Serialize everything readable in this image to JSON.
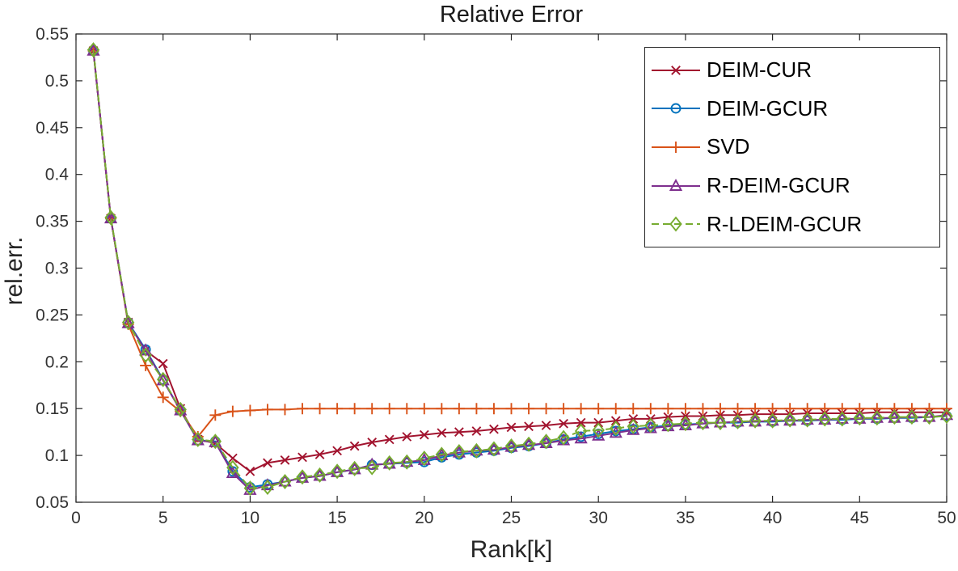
{
  "chart_data": {
    "type": "line",
    "title": "Relative Error",
    "xlabel": "Rank[k]",
    "ylabel": "rel.err.",
    "xlim": [
      0,
      50
    ],
    "ylim": [
      0.05,
      0.55
    ],
    "grid": false,
    "legend_position": "top-right",
    "axis_color": "#262626",
    "xticks": {
      "values": [
        0,
        5,
        10,
        15,
        20,
        25,
        30,
        35,
        40,
        45,
        50
      ],
      "labels": [
        "0",
        "5",
        "10",
        "15",
        "20",
        "25",
        "30",
        "35",
        "40",
        "45",
        "50"
      ]
    },
    "yticks": {
      "values": [
        0.05,
        0.1,
        0.15,
        0.2,
        0.25,
        0.3,
        0.35,
        0.4,
        0.45,
        0.5,
        0.55
      ],
      "labels": [
        "0.05",
        "0.1",
        "0.15",
        "0.2",
        "0.25",
        "0.3",
        "0.35",
        "0.4",
        "0.45",
        "0.5",
        "0.55"
      ]
    },
    "x": [
      1,
      2,
      3,
      4,
      5,
      6,
      7,
      8,
      9,
      10,
      11,
      12,
      13,
      14,
      15,
      16,
      17,
      18,
      19,
      20,
      21,
      22,
      23,
      24,
      25,
      26,
      27,
      28,
      29,
      30,
      31,
      32,
      33,
      34,
      35,
      36,
      37,
      38,
      39,
      40,
      41,
      42,
      43,
      44,
      45,
      46,
      47,
      48,
      49,
      50
    ],
    "series": [
      {
        "name": "DEIM-CUR",
        "color": "#A2142F",
        "marker": "x",
        "dash": null,
        "values": [
          0.532,
          0.353,
          0.242,
          0.212,
          0.198,
          0.15,
          0.117,
          0.113,
          0.097,
          0.083,
          0.092,
          0.095,
          0.098,
          0.101,
          0.105,
          0.11,
          0.114,
          0.117,
          0.12,
          0.122,
          0.124,
          0.125,
          0.126,
          0.128,
          0.13,
          0.131,
          0.132,
          0.134,
          0.135,
          0.135,
          0.137,
          0.139,
          0.139,
          0.141,
          0.142,
          0.142,
          0.143,
          0.143,
          0.144,
          0.144,
          0.144,
          0.145,
          0.145,
          0.145,
          0.145,
          0.146,
          0.146,
          0.146,
          0.146,
          0.146
        ]
      },
      {
        "name": "DEIM-GCUR",
        "color": "#0072BD",
        "marker": "circle",
        "dash": null,
        "values": [
          0.532,
          0.353,
          0.242,
          0.213,
          0.181,
          0.148,
          0.116,
          0.115,
          0.083,
          0.066,
          0.069,
          0.072,
          0.076,
          0.078,
          0.082,
          0.085,
          0.09,
          0.091,
          0.092,
          0.093,
          0.098,
          0.101,
          0.103,
          0.105,
          0.108,
          0.11,
          0.113,
          0.117,
          0.12,
          0.123,
          0.126,
          0.128,
          0.13,
          0.132,
          0.133,
          0.134,
          0.135,
          0.135,
          0.136,
          0.136,
          0.137,
          0.137,
          0.138,
          0.138,
          0.139,
          0.139,
          0.14,
          0.14,
          0.141,
          0.142
        ]
      },
      {
        "name": "SVD",
        "color": "#D95319",
        "marker": "plus",
        "dash": null,
        "values": [
          0.532,
          0.353,
          0.24,
          0.196,
          0.162,
          0.147,
          0.12,
          0.143,
          0.147,
          0.148,
          0.149,
          0.149,
          0.15,
          0.15,
          0.15,
          0.15,
          0.15,
          0.15,
          0.15,
          0.15,
          0.15,
          0.15,
          0.15,
          0.15,
          0.15,
          0.15,
          0.15,
          0.15,
          0.15,
          0.15,
          0.15,
          0.15,
          0.15,
          0.15,
          0.15,
          0.15,
          0.15,
          0.15,
          0.15,
          0.15,
          0.15,
          0.15,
          0.15,
          0.15,
          0.15,
          0.15,
          0.15,
          0.15,
          0.15,
          0.15
        ]
      },
      {
        "name": "R-DEIM-GCUR",
        "color": "#7E2F8E",
        "marker": "triangle",
        "dash": null,
        "values": [
          0.532,
          0.353,
          0.241,
          0.212,
          0.18,
          0.148,
          0.116,
          0.114,
          0.081,
          0.063,
          0.068,
          0.072,
          0.076,
          0.078,
          0.082,
          0.085,
          0.09,
          0.091,
          0.093,
          0.095,
          0.1,
          0.103,
          0.105,
          0.106,
          0.109,
          0.111,
          0.113,
          0.116,
          0.118,
          0.121,
          0.124,
          0.127,
          0.129,
          0.131,
          0.132,
          0.134,
          0.135,
          0.136,
          0.136,
          0.137,
          0.137,
          0.138,
          0.138,
          0.139,
          0.139,
          0.14,
          0.14,
          0.141,
          0.141,
          0.143
        ]
      },
      {
        "name": "R-LDEIM-GCUR",
        "color": "#77AC30",
        "marker": "diamond",
        "dash": "9 5",
        "values": [
          0.533,
          0.354,
          0.242,
          0.207,
          0.181,
          0.149,
          0.117,
          0.115,
          0.087,
          0.065,
          0.066,
          0.072,
          0.077,
          0.079,
          0.083,
          0.086,
          0.087,
          0.092,
          0.093,
          0.097,
          0.101,
          0.104,
          0.105,
          0.107,
          0.11,
          0.112,
          0.115,
          0.119,
          0.126,
          0.127,
          0.129,
          0.131,
          0.132,
          0.133,
          0.134,
          0.135,
          0.135,
          0.136,
          0.137,
          0.137,
          0.138,
          0.138,
          0.139,
          0.139,
          0.14,
          0.14,
          0.141,
          0.141,
          0.141,
          0.142
        ]
      }
    ]
  }
}
